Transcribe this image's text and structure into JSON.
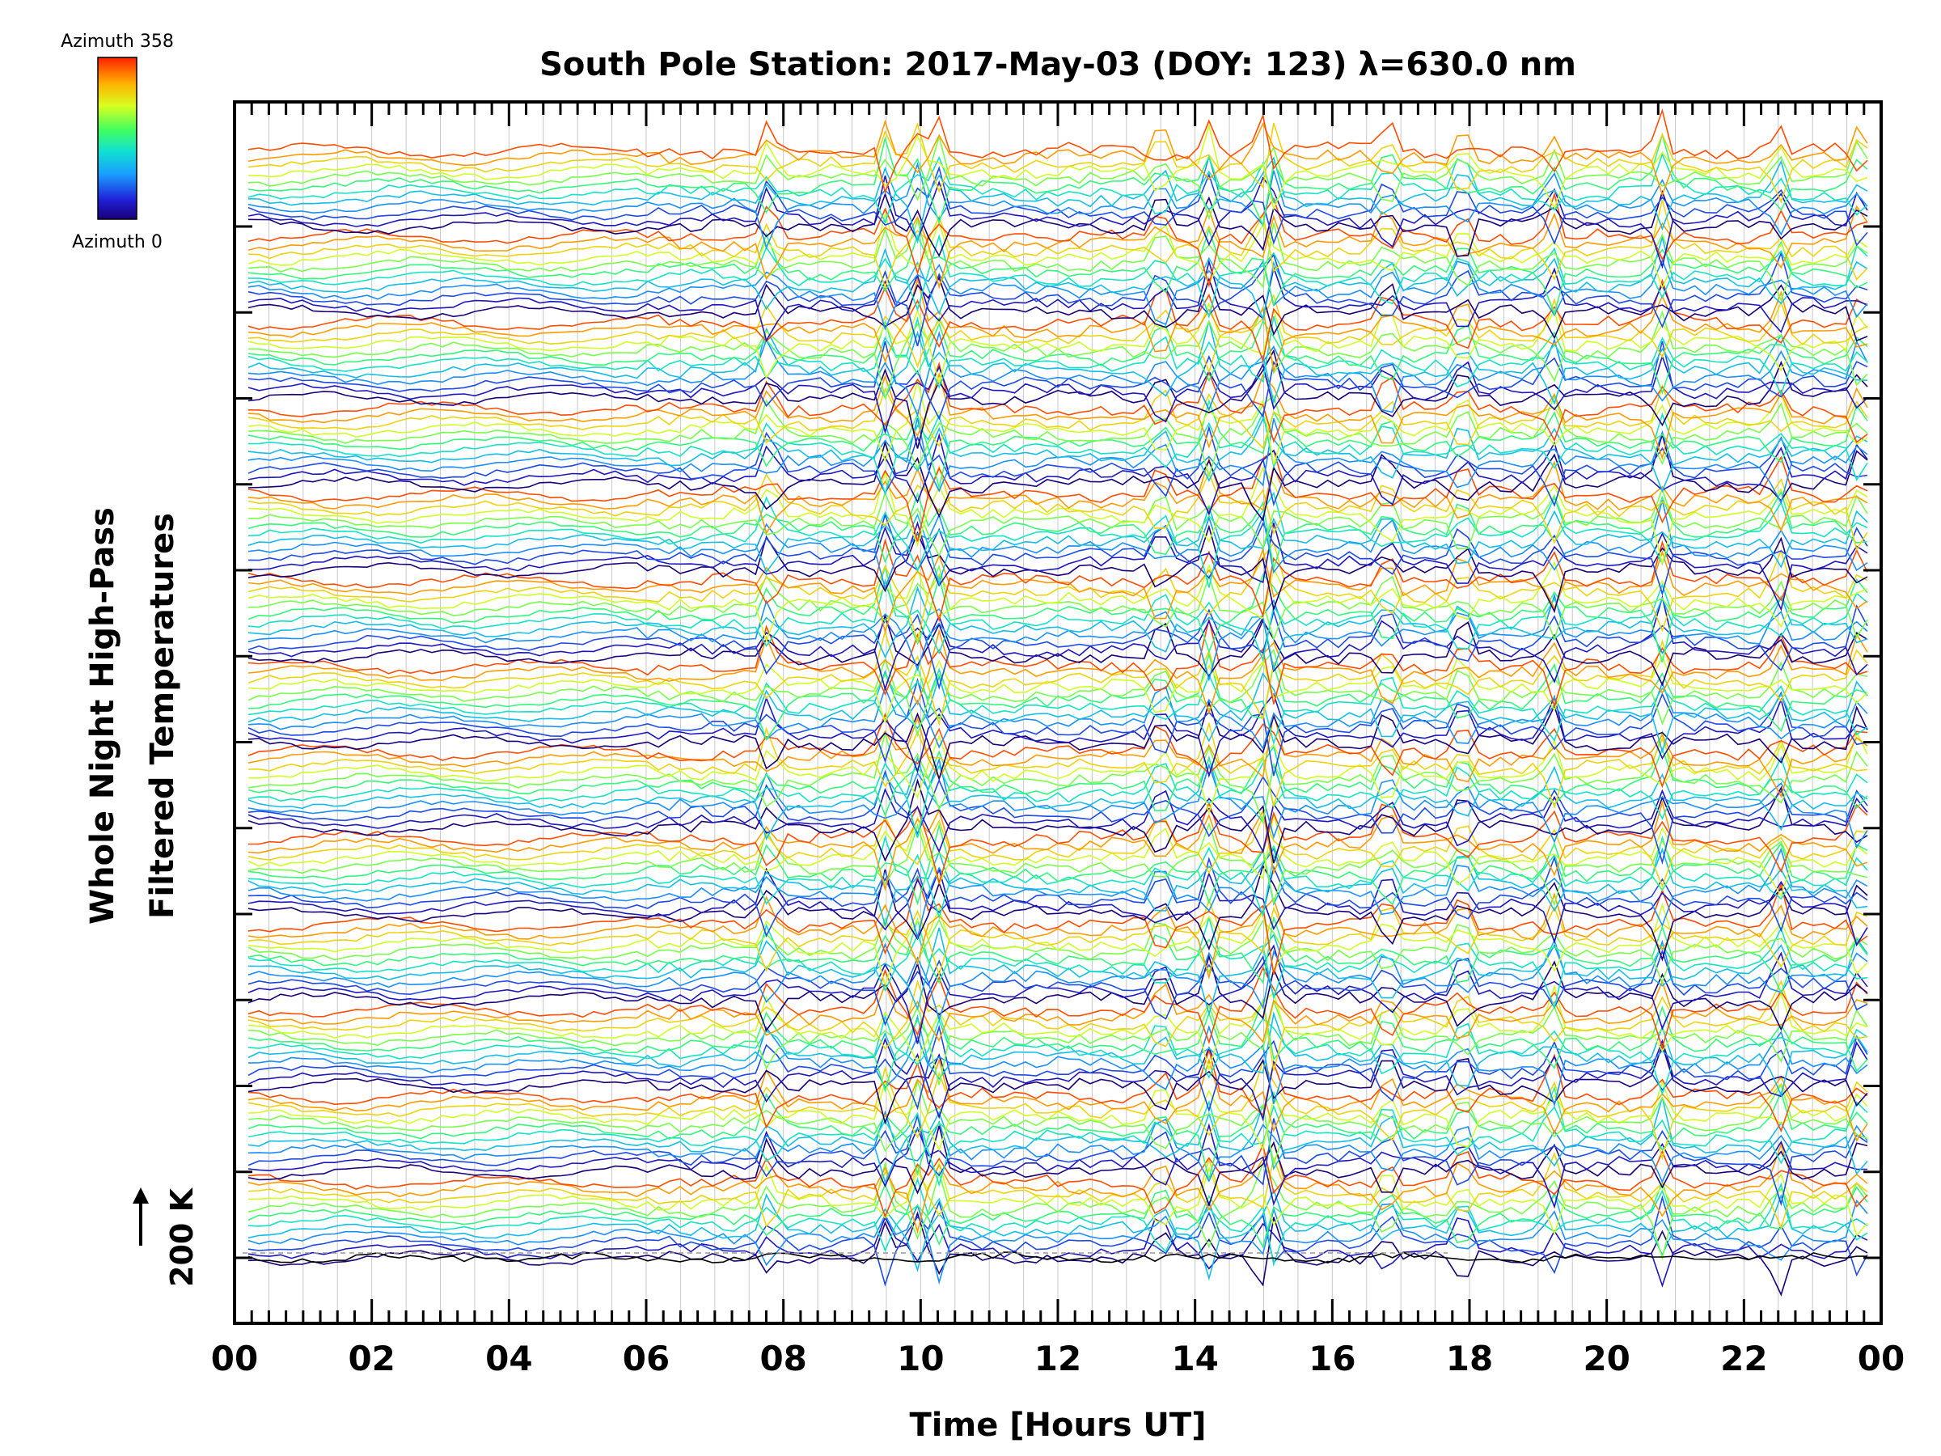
{
  "chart_data": {
    "type": "line",
    "title": "South Pole Station: 2017-May-03 (DOY: 123) λ=630.0 nm",
    "xlabel": "Time [Hours UT]",
    "ylabel_line1": "Whole Night High-Pass",
    "ylabel_line2": "Filtered Temperatures",
    "x_ticks": [
      "00",
      "02",
      "04",
      "06",
      "08",
      "10",
      "12",
      "14",
      "16",
      "18",
      "20",
      "22",
      "00"
    ],
    "xlim": [
      0,
      24
    ],
    "x_minor_step_hours": 0.25,
    "scale_label": "200 K",
    "colorbar": {
      "top_label": "Azimuth  358",
      "bottom_label": "Azimuth  0",
      "range": [
        0,
        358
      ],
      "colormap": "rainbow"
    },
    "stacked_groups": 13,
    "traces_per_group": 12,
    "spike_events_ut_hours": [
      7.8,
      9.5,
      9.95,
      10.25,
      13.5,
      14.2,
      14.95,
      15.15,
      16.8,
      17.9,
      19.2,
      20.8,
      22.5,
      23.7
    ],
    "grid": true,
    "colors": {
      "axis": "#000000",
      "grid": "#c8c8c8",
      "background": "#ffffff"
    }
  }
}
